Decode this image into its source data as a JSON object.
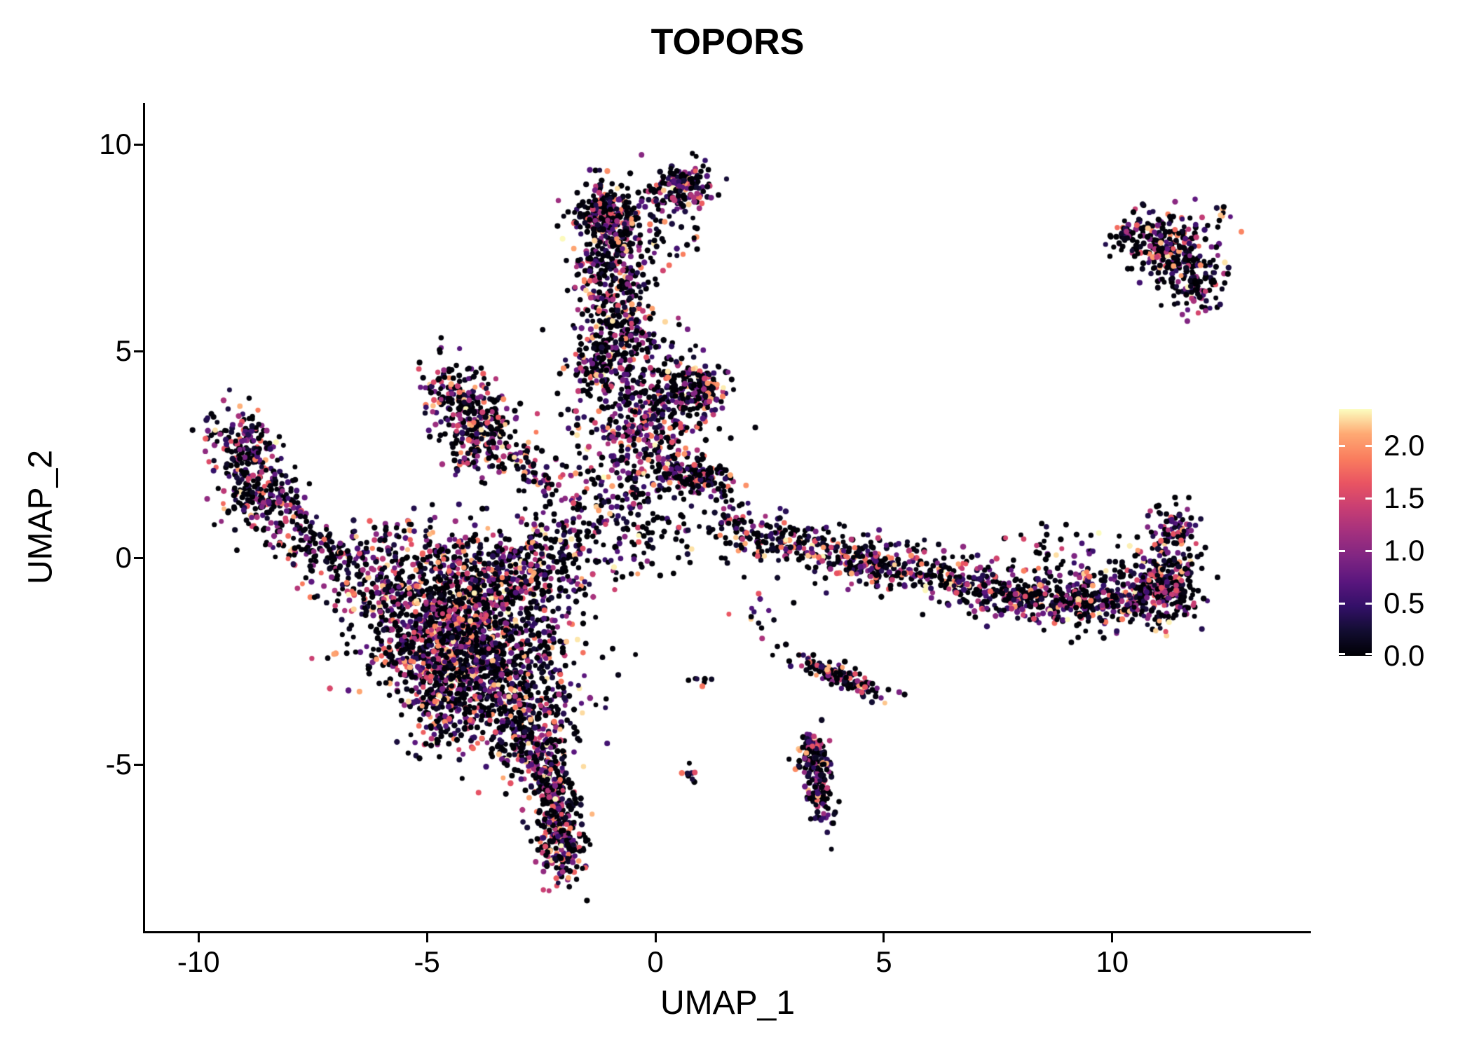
{
  "chart_data": {
    "type": "scatter",
    "title": "TOPORS",
    "xlabel": "UMAP_1",
    "ylabel": "UMAP_2",
    "xlim": [
      -11.17,
      14.33
    ],
    "ylim": [
      -9.03,
      11.0
    ],
    "grid": false,
    "legend_position": "right",
    "xticks": [
      -10,
      -5,
      0,
      5,
      10
    ],
    "xtick_labels": [
      "-10",
      "-5",
      "0",
      "5",
      "10"
    ],
    "yticks": [
      10,
      5,
      0,
      -5
    ],
    "ytick_labels": [
      "10",
      "5",
      "0",
      "-5"
    ],
    "legend": {
      "labels": [
        "2.0",
        "1.5",
        "1.0",
        "0.5",
        "0.0"
      ],
      "values": [
        2.0,
        1.5,
        1.0,
        0.5,
        0.0
      ],
      "domain": [
        0,
        2.35
      ]
    },
    "colormap": {
      "name": "magma",
      "stops": [
        "#000004",
        "#120d31",
        "#331068",
        "#5a167e",
        "#7f2582",
        "#a3307e",
        "#c83e73",
        "#e95462",
        "#fa7d5e",
        "#fea973",
        "#fcfdbf"
      ]
    },
    "expression_distribution": {
      "zero_fraction": 0.32,
      "power": 2.0,
      "max": 2.35
    },
    "seed": 20240607,
    "clusters": [
      {
        "x": -4.3,
        "y": -1.2,
        "sx": 1.05,
        "sy": 0.85,
        "rot": 0,
        "n": 850
      },
      {
        "x": -3.4,
        "y": -2.7,
        "sx": 0.85,
        "sy": 0.85,
        "rot": 0,
        "n": 650
      },
      {
        "x": -5.0,
        "y": -2.3,
        "sx": 0.65,
        "sy": 0.6,
        "rot": 0,
        "n": 300
      },
      {
        "x": -2.9,
        "y": -4.3,
        "sx": 0.5,
        "sy": 0.55,
        "rot": 0,
        "n": 260
      },
      {
        "x": -6.1,
        "y": -0.7,
        "sx": 0.8,
        "sy": 0.45,
        "rot": -0.3,
        "n": 150
      },
      {
        "x": -3.0,
        "y": -0.3,
        "sx": 0.9,
        "sy": 0.5,
        "rot": 0,
        "n": 220
      },
      {
        "x": -4.6,
        "y": -3.6,
        "sx": 0.4,
        "sy": 0.5,
        "rot": 0,
        "n": 150
      },
      {
        "x": -2.25,
        "y": -5.6,
        "sx": 0.22,
        "sy": 0.55,
        "rot": 0.12,
        "n": 200
      },
      {
        "x": -2.0,
        "y": -6.9,
        "sx": 0.28,
        "sy": 0.5,
        "rot": 0.05,
        "n": 200
      },
      {
        "x": -0.95,
        "y": 6.6,
        "sx": 0.42,
        "sy": 1.15,
        "rot": 0.05,
        "n": 420
      },
      {
        "x": -1.05,
        "y": 8.3,
        "sx": 0.3,
        "sy": 0.32,
        "rot": 0,
        "n": 230
      },
      {
        "x": 0.6,
        "y": 9.0,
        "sx": 0.34,
        "sy": 0.26,
        "rot": 0,
        "n": 150
      },
      {
        "x": -0.1,
        "y": 7.9,
        "sx": 0.55,
        "sy": 0.55,
        "rot": 0,
        "n": 70
      },
      {
        "x": -0.5,
        "y": 5.3,
        "sx": 0.5,
        "sy": 0.45,
        "rot": 0,
        "n": 90
      },
      {
        "x": -0.3,
        "y": 2.9,
        "sx": 0.7,
        "sy": 1.0,
        "rot": 0,
        "n": 520
      },
      {
        "x": 0.85,
        "y": 4.05,
        "sx": 0.42,
        "sy": 0.36,
        "rot": 0,
        "n": 190
      },
      {
        "x": 0.9,
        "y": 1.95,
        "sx": 0.5,
        "sy": 0.2,
        "rot": 0,
        "n": 150
      },
      {
        "x": -1.35,
        "y": 4.6,
        "sx": 0.25,
        "sy": 0.3,
        "rot": 0,
        "n": 80
      },
      {
        "x": -4.35,
        "y": 3.85,
        "sx": 0.38,
        "sy": 0.5,
        "rot": 0.5,
        "n": 180
      },
      {
        "x": -3.8,
        "y": 3.1,
        "sx": 0.3,
        "sy": 0.55,
        "rot": -0.45,
        "n": 150
      },
      {
        "x": -3.15,
        "y": 2.5,
        "sx": 0.45,
        "sy": 0.3,
        "rot": -0.3,
        "n": 70
      },
      {
        "x": -9.0,
        "y": 2.7,
        "sx": 0.35,
        "sy": 0.55,
        "rot": 0.35,
        "n": 170
      },
      {
        "x": -8.6,
        "y": 1.5,
        "sx": 0.45,
        "sy": 0.4,
        "rot": 0,
        "n": 170
      },
      {
        "x": -7.8,
        "y": 0.5,
        "sx": 0.55,
        "sy": 0.35,
        "rot": -0.5,
        "n": 100
      },
      {
        "x": -6.9,
        "y": 0.1,
        "sx": 0.45,
        "sy": 0.3,
        "rot": -0.3,
        "n": 60
      },
      {
        "x": -1.9,
        "y": 0.7,
        "sx": 0.65,
        "sy": 0.75,
        "rot": 0,
        "n": 150
      },
      {
        "x": -0.2,
        "y": 0.4,
        "sx": 0.7,
        "sy": 0.45,
        "rot": 0,
        "n": 60
      },
      {
        "x": 2.6,
        "y": 0.45,
        "sx": 0.5,
        "sy": 0.3,
        "rot": -0.1,
        "n": 120
      },
      {
        "x": 4.2,
        "y": 0.0,
        "sx": 0.7,
        "sy": 0.28,
        "rot": -0.15,
        "n": 170
      },
      {
        "x": 6.0,
        "y": -0.4,
        "sx": 0.9,
        "sy": 0.3,
        "rot": -0.1,
        "n": 190
      },
      {
        "x": 8.0,
        "y": -0.85,
        "sx": 0.9,
        "sy": 0.3,
        "rot": -0.05,
        "n": 240
      },
      {
        "x": 9.8,
        "y": -1.0,
        "sx": 0.8,
        "sy": 0.35,
        "rot": 0.1,
        "n": 300
      },
      {
        "x": 11.1,
        "y": -0.7,
        "sx": 0.4,
        "sy": 0.45,
        "rot": 0,
        "n": 240
      },
      {
        "x": 11.3,
        "y": 0.55,
        "sx": 0.28,
        "sy": 0.38,
        "rot": 0,
        "n": 100
      },
      {
        "x": 1.7,
        "y": 0.9,
        "sx": 0.25,
        "sy": 0.3,
        "rot": 0,
        "n": 40
      },
      {
        "x": 11.25,
        "y": 7.45,
        "sx": 0.55,
        "sy": 0.45,
        "rot": -0.5,
        "n": 260
      },
      {
        "x": 11.85,
        "y": 6.5,
        "sx": 0.28,
        "sy": 0.3,
        "rot": 0.3,
        "n": 80
      },
      {
        "x": 12.45,
        "y": 8.35,
        "sx": 0.12,
        "sy": 0.1,
        "rot": 0,
        "n": 8
      },
      {
        "x": 10.4,
        "y": 7.85,
        "sx": 0.22,
        "sy": 0.15,
        "rot": 0,
        "n": 35
      },
      {
        "x": 4.1,
        "y": -2.9,
        "sx": 0.6,
        "sy": 0.13,
        "rot": -0.42,
        "n": 130
      },
      {
        "x": 3.55,
        "y": -5.3,
        "sx": 0.16,
        "sy": 0.55,
        "rot": 0.1,
        "n": 170
      },
      {
        "x": 3.45,
        "y": -4.55,
        "sx": 0.13,
        "sy": 0.16,
        "rot": 0,
        "n": 40
      },
      {
        "x": 0.75,
        "y": -5.25,
        "sx": 0.12,
        "sy": 0.1,
        "rot": 0,
        "n": 9
      },
      {
        "x": 1.05,
        "y": -3.0,
        "sx": 0.15,
        "sy": 0.12,
        "rot": 0,
        "n": 7
      },
      {
        "x": 2.3,
        "y": -1.4,
        "sx": 0.3,
        "sy": 0.4,
        "rot": 0,
        "n": 14
      },
      {
        "x": -2.6,
        "y": 2.0,
        "sx": 0.3,
        "sy": 0.25,
        "rot": 0,
        "n": 25
      },
      {
        "x": 9.0,
        "y": 0.3,
        "sx": 0.8,
        "sy": 0.25,
        "rot": -0.1,
        "n": 40
      },
      {
        "x": -5.3,
        "y": 0.6,
        "sx": 0.6,
        "sy": 0.35,
        "rot": 0,
        "n": 50
      }
    ]
  }
}
